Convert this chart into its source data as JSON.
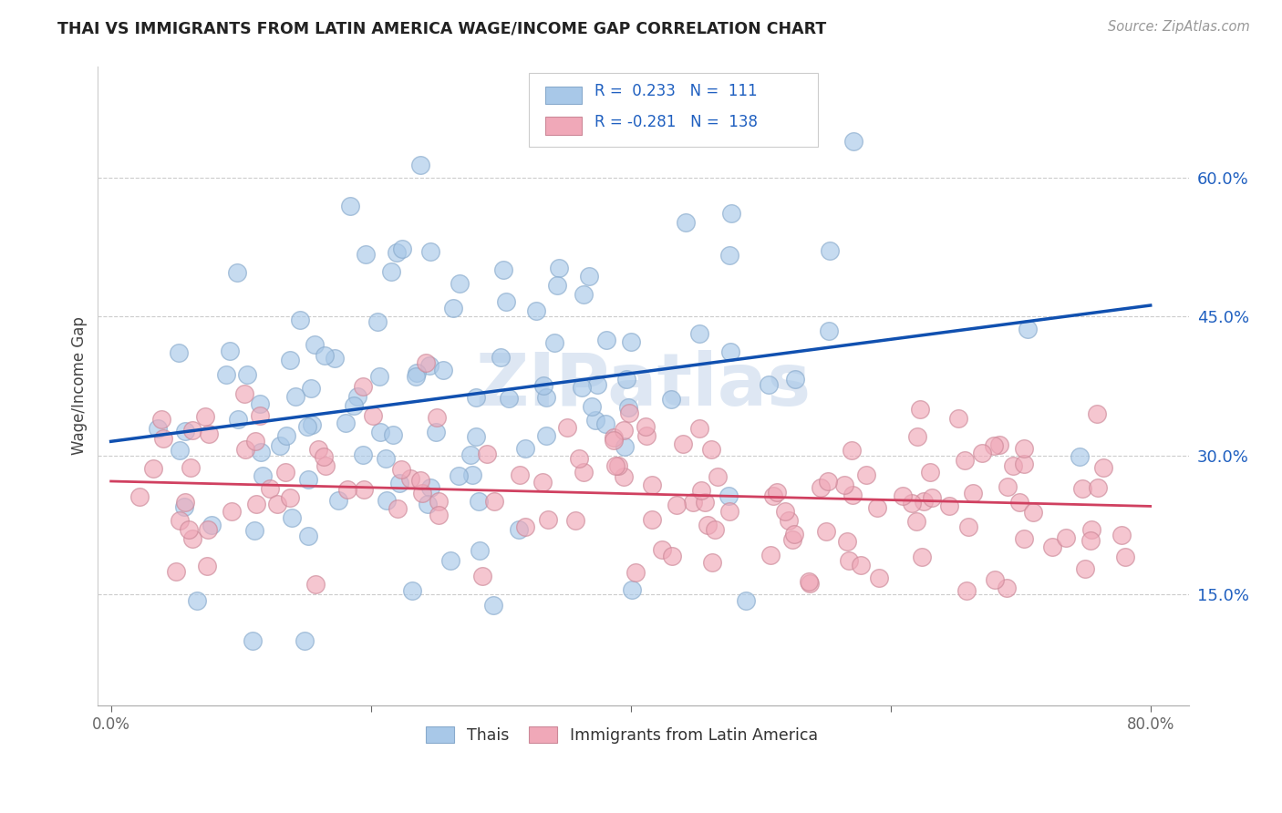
{
  "title": "THAI VS IMMIGRANTS FROM LATIN AMERICA WAGE/INCOME GAP CORRELATION CHART",
  "source": "Source: ZipAtlas.com",
  "ylabel": "Wage/Income Gap",
  "ytick_labels": [
    "15.0%",
    "30.0%",
    "45.0%",
    "60.0%"
  ],
  "ytick_positions": [
    0.15,
    0.3,
    0.45,
    0.6
  ],
  "xtick_positions": [
    0.0,
    0.2,
    0.4,
    0.6,
    0.8
  ],
  "xlim": [
    -0.01,
    0.83
  ],
  "ylim": [
    0.03,
    0.72
  ],
  "blue_color": "#A8C8E8",
  "pink_color": "#F0A8B8",
  "line_blue_color": "#1050B0",
  "line_pink_color": "#D04060",
  "legend_text_color": "#2060C0",
  "watermark_color": "#C8D8EC",
  "background_color": "#FFFFFF",
  "blue_line_start_y": 0.315,
  "blue_line_end_y": 0.462,
  "pink_line_start_y": 0.272,
  "pink_line_end_y": 0.245,
  "blue_N": 111,
  "pink_N": 138,
  "blue_R": 0.233,
  "pink_R": -0.281
}
